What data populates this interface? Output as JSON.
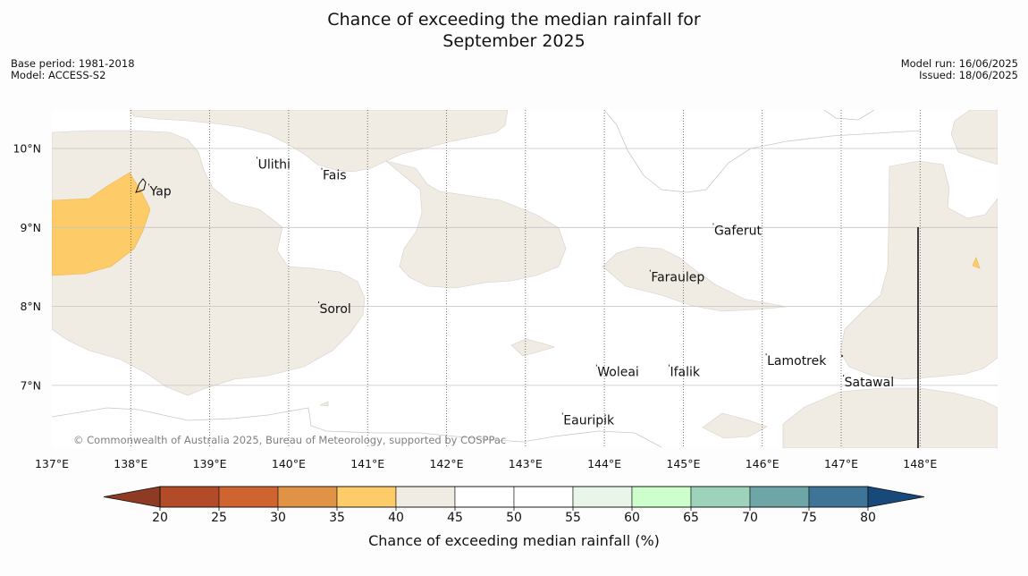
{
  "title_line1": "Chance of exceeding the median rainfall for",
  "title_line2": "September 2025",
  "base_period": "Base period: 1981-2018",
  "model": "Model: ACCESS-S2",
  "model_run": "Model run: 16/06/2025",
  "issued": "Issued: 18/06/2025",
  "credit": "© Commonwealth of Australia 2025, Bureau of Meteorology, supported by COSPPac",
  "map": {
    "lon_range": [
      137,
      149
    ],
    "lat_range": [
      6.2,
      10.5
    ],
    "lon_ticks": [
      "137°E",
      "138°E",
      "139°E",
      "140°E",
      "141°E",
      "142°E",
      "143°E",
      "144°E",
      "145°E",
      "146°E",
      "147°E",
      "148°E"
    ],
    "lat_ticks": [
      "10°N",
      "9°N",
      "8°N",
      "7°N"
    ],
    "places": [
      {
        "name": "Yap",
        "lon": 138.23,
        "lat": 9.52
      },
      {
        "name": "Ulithi",
        "lon": 139.6,
        "lat": 9.86
      },
      {
        "name": "Fais",
        "lon": 140.42,
        "lat": 9.72
      },
      {
        "name": "Gaferut",
        "lon": 145.38,
        "lat": 9.02
      },
      {
        "name": "Faraulep",
        "lon": 144.58,
        "lat": 8.43
      },
      {
        "name": "Sorol",
        "lon": 140.38,
        "lat": 8.03
      },
      {
        "name": "Lamotrek",
        "lon": 146.05,
        "lat": 7.37
      },
      {
        "name": "Satawal",
        "lon": 147.03,
        "lat": 7.1
      },
      {
        "name": "Woleai",
        "lon": 143.9,
        "lat": 7.23
      },
      {
        "name": "Ifalik",
        "lon": 144.82,
        "lat": 7.23
      },
      {
        "name": "Eauripik",
        "lon": 143.47,
        "lat": 6.62
      }
    ]
  },
  "colorbar": {
    "label": "Chance of exceeding median rainfall (%)",
    "ticks": [
      "20",
      "25",
      "30",
      "35",
      "40",
      "45",
      "50",
      "55",
      "60",
      "65",
      "70",
      "75",
      "80"
    ],
    "under_color": "#8f3a22",
    "over_color": "#17497a",
    "colors": [
      "#b44b28",
      "#cf6431",
      "#e09344",
      "#fdcb67",
      "#f0ebe3",
      "#ffffff",
      "#ffffff",
      "#e9f5e9",
      "#ccffcc",
      "#9dd3bb",
      "#6ea6a8",
      "#3e7596"
    ]
  }
}
